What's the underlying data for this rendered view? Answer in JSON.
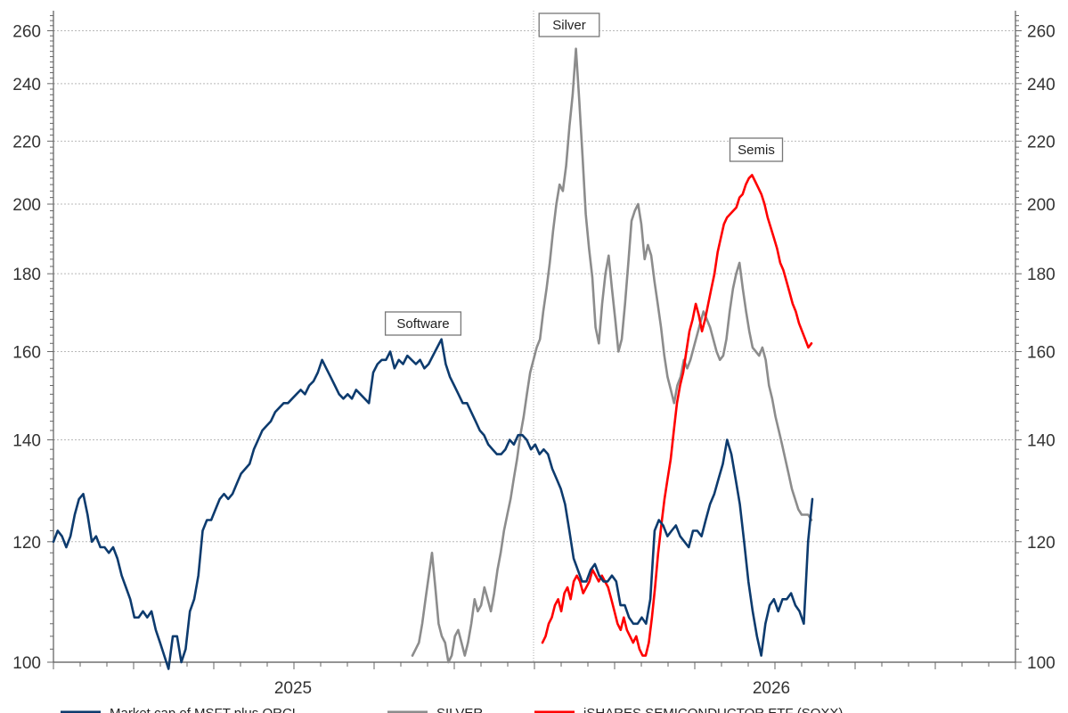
{
  "chart_data": {
    "type": "line",
    "y_scale": "log",
    "ylim": [
      100,
      268
    ],
    "y_ticks": [
      100,
      120,
      140,
      160,
      180,
      200,
      220,
      240,
      260
    ],
    "x_ticks": [
      "2025",
      "2026"
    ],
    "grid": true,
    "legend_position": "bottom",
    "annotations": [
      "Software",
      "Silver",
      "Semis"
    ],
    "series": [
      {
        "name": "Market cap of MSFT plus ORCL",
        "color": "#0d3b6e",
        "values": [
          120,
          122,
          121,
          119,
          121,
          125,
          128,
          129,
          125,
          120,
          121,
          119,
          119,
          118,
          119,
          117,
          114,
          112,
          110,
          107,
          107,
          108,
          107,
          108,
          105,
          103,
          101,
          99,
          104,
          104,
          100,
          102,
          108,
          110,
          114,
          122,
          124,
          124,
          126,
          128,
          129,
          128,
          129,
          131,
          133,
          134,
          135,
          138,
          140,
          142,
          143,
          144,
          146,
          147,
          148,
          148,
          149,
          150,
          151,
          150,
          152,
          153,
          155,
          158,
          156,
          154,
          152,
          150,
          149,
          150,
          149,
          151,
          150,
          149,
          148,
          155,
          157,
          158,
          158,
          160,
          156,
          158,
          157,
          159,
          158,
          157,
          158,
          156,
          157,
          159,
          161,
          163,
          157,
          154,
          152,
          150,
          148,
          148,
          146,
          144,
          142,
          141,
          139,
          138,
          137,
          137,
          138,
          140,
          139,
          141,
          141,
          140,
          138,
          139,
          137,
          138,
          137,
          134,
          132,
          130,
          127,
          122,
          117,
          115,
          113,
          113,
          115,
          116,
          114,
          113,
          113,
          114,
          113,
          109,
          109,
          107,
          106,
          106,
          107,
          106,
          110,
          122,
          124,
          123,
          121,
          122,
          123,
          121,
          120,
          119,
          122,
          122,
          121,
          124,
          127,
          129,
          132,
          135,
          140,
          137,
          132,
          127,
          120,
          113,
          108,
          104,
          101,
          106,
          109,
          110,
          108,
          110,
          110,
          111,
          109,
          108,
          106,
          120,
          128
        ]
      },
      {
        "name": "SILVER",
        "color": "#8c8c8c",
        "values": [
          101,
          102,
          103,
          106,
          110,
          114,
          118,
          112,
          106,
          104,
          103,
          100,
          101,
          104,
          105,
          103,
          101,
          103,
          106,
          110,
          108,
          109,
          112,
          110,
          108,
          111,
          115,
          118,
          122,
          125,
          128,
          132,
          136,
          141,
          145,
          150,
          155,
          158,
          161,
          163,
          170,
          176,
          183,
          192,
          200,
          206,
          204,
          212,
          225,
          236,
          253,
          234,
          215,
          197,
          187,
          179,
          166,
          162,
          172,
          180,
          185,
          176,
          168,
          160,
          163,
          172,
          183,
          195,
          198,
          200,
          194,
          184,
          188,
          185,
          178,
          172,
          166,
          159,
          154,
          151,
          148,
          152,
          154,
          158,
          156,
          158,
          161,
          164,
          167,
          170,
          168,
          166,
          163,
          160,
          158,
          159,
          163,
          170,
          176,
          180,
          183,
          176,
          170,
          165,
          161,
          160,
          159,
          161,
          158,
          152,
          149,
          145,
          142,
          139,
          136,
          133,
          130,
          128,
          126,
          125,
          125,
          125,
          124
        ]
      },
      {
        "name": "iSHARES SEMICONDUCTOR ETF (SOXX)",
        "color": "#ff0000",
        "values": [
          103,
          104,
          106,
          107,
          109,
          110,
          108,
          111,
          112,
          110,
          113,
          114,
          113,
          111,
          112,
          113,
          115,
          114,
          113,
          114,
          113,
          112,
          110,
          108,
          106,
          105,
          107,
          105,
          104,
          103,
          104,
          102,
          101,
          101,
          103,
          107,
          112,
          118,
          123,
          128,
          132,
          136,
          142,
          148,
          152,
          155,
          160,
          165,
          168,
          172,
          169,
          165,
          168,
          172,
          176,
          180,
          186,
          190,
          194,
          196,
          197,
          198,
          199,
          202,
          203,
          206,
          208,
          209,
          207,
          205,
          203,
          200,
          196,
          193,
          190,
          187,
          183,
          181,
          178,
          175,
          172,
          170,
          167,
          165,
          163,
          161,
          162
        ]
      }
    ]
  }
}
